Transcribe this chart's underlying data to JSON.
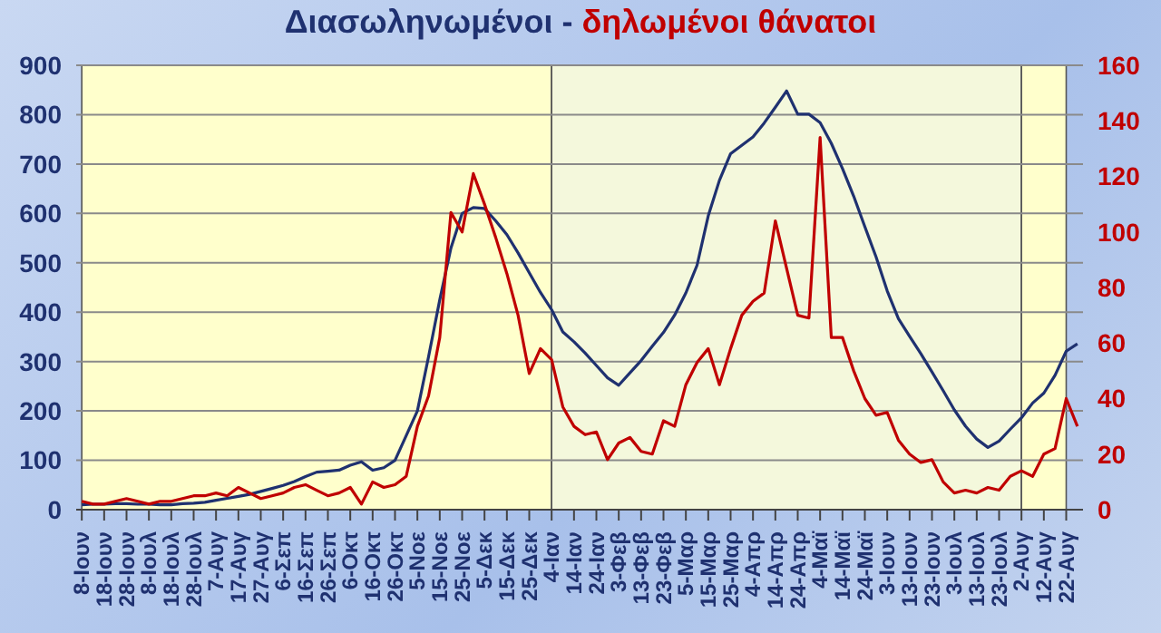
{
  "chart_data": {
    "type": "line",
    "title": "Διασωληνωμένοι - δηλωμένοι θάνατοι",
    "categories": [
      "8-Ιουν",
      null,
      "18-Ιουν",
      null,
      "28-Ιουν",
      null,
      "8-Ιουλ",
      null,
      "18-Ιουλ",
      null,
      "28-Ιουλ",
      null,
      "7-Αυγ",
      null,
      "17-Αυγ",
      null,
      "27-Αυγ",
      null,
      "6-Σεπ",
      null,
      "16-Σεπ",
      null,
      "26-Σεπ",
      null,
      "6-Οκτ",
      null,
      "16-Οκτ",
      null,
      "26-Οκτ",
      null,
      "5-Νοε",
      null,
      "15-Νοε",
      null,
      "25-Νοε",
      null,
      "5-Δεκ",
      null,
      "15-Δεκ",
      null,
      "25-Δεκ",
      null,
      "4-Ιαν",
      null,
      "14-Ιαν",
      null,
      "24-Ιαν",
      null,
      "3-Φεβ",
      null,
      "13-Φεβ",
      null,
      "23-Φεβ",
      null,
      "5-Μαρ",
      null,
      "15-Μαρ",
      null,
      "25-Μαρ",
      null,
      "4-Απρ",
      null,
      "14-Απρ",
      null,
      "24-Απρ",
      null,
      "4-Μαϊ",
      null,
      "14-Μαϊ",
      null,
      "24-Μαϊ",
      null,
      "3-Ιουν",
      null,
      "13-Ιουν",
      null,
      "23-Ιουν",
      null,
      "3-Ιουλ",
      null,
      "13-Ιουλ",
      null,
      "23-Ιουλ",
      null,
      "2-Αυγ",
      null,
      "12-Αυγ",
      null,
      "22-Αυγ",
      null
    ],
    "series": [
      {
        "color": "#1f3170",
        "values": [
          10,
          11,
          11,
          12,
          12,
          11,
          11,
          10,
          10,
          12,
          13,
          15,
          19,
          23,
          27,
          31,
          37,
          43,
          49,
          57,
          67,
          76,
          78,
          80,
          90,
          97,
          80,
          85,
          100,
          150,
          200,
          310,
          425,
          530,
          600,
          612,
          610,
          585,
          557,
          520,
          480,
          440,
          405,
          360,
          340,
          317,
          292,
          267,
          252,
          277,
          302,
          331,
          359,
          394,
          439,
          495,
          595,
          667,
          721,
          738,
          755,
          783,
          815,
          848,
          801,
          801,
          784,
          742,
          691,
          635,
          573,
          512,
          443,
          387,
          351,
          316,
          279,
          241,
          202,
          169,
          143,
          126,
          139,
          163,
          186,
          216,
          236,
          272,
          321,
          336
        ]
      },
      {
        "color": "#c00000",
        "axis": "y2",
        "values": [
          3,
          2,
          2,
          3,
          4,
          3,
          2,
          3,
          3,
          4,
          5,
          5,
          6,
          5,
          8,
          6,
          4,
          5,
          6,
          8,
          9,
          7,
          5,
          6,
          8,
          2,
          10,
          8,
          9,
          12,
          30,
          41,
          62,
          107,
          100,
          121,
          110,
          98,
          85,
          70,
          49,
          58,
          54,
          37,
          30,
          27,
          28,
          18,
          24,
          26,
          21,
          20,
          32,
          30,
          45,
          53,
          58,
          45,
          58,
          70,
          75,
          78,
          104,
          87,
          70,
          69,
          134,
          62,
          62,
          50,
          40,
          34,
          35,
          25,
          20,
          17,
          18,
          10,
          6,
          7,
          6,
          8,
          7,
          12,
          14,
          12,
          20,
          22,
          40,
          30
        ]
      }
    ],
    "ylim": [
      0,
      900
    ],
    "yticks": [
      0,
      100,
      200,
      300,
      400,
      500,
      600,
      700,
      800,
      900
    ],
    "y2lim": [
      0,
      160
    ],
    "y2ticks": [
      0,
      20,
      40,
      60,
      80,
      100,
      120,
      140,
      160
    ],
    "grid": "y",
    "bands": [
      {
        "axis": "x",
        "from": "8-Ιουν",
        "to": "4-Ιαν",
        "color": "#ffffcc"
      },
      {
        "axis": "x",
        "from": "4-Ιαν",
        "to": "2-Αυγ",
        "color": "#f4f8dc"
      },
      {
        "axis": "x",
        "from": "2-Αυγ",
        "to": "22-Αυγ",
        "color": "#ffffcc"
      }
    ]
  }
}
